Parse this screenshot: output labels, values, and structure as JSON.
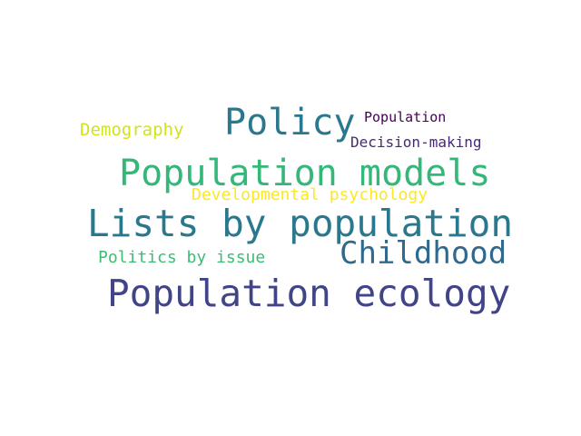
{
  "words": [
    {
      "text": "Population ecology",
      "color": "#414487"
    },
    {
      "text": "Lists by population",
      "color": "#2a788e"
    },
    {
      "text": "Population models",
      "color": "#35b779"
    },
    {
      "text": "Policy",
      "color": "#2a788e"
    },
    {
      "text": "Childhood",
      "color": "#31688e"
    },
    {
      "text": "Developmental psychology",
      "color": "#fde725"
    },
    {
      "text": "Demography",
      "color": "#d2e21b"
    },
    {
      "text": "Politics by issue",
      "color": "#3fbc73"
    },
    {
      "text": "Decision-making",
      "color": "#482878"
    },
    {
      "text": "Population",
      "color": "#440154"
    }
  ]
}
